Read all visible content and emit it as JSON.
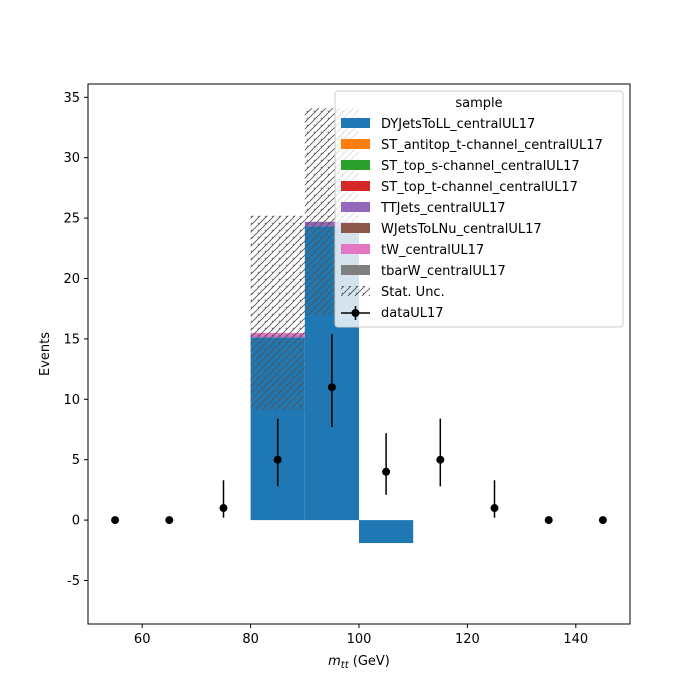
{
  "chart_data": {
    "type": "bar",
    "xlabel_main": "m",
    "xlabel_sub": "tt",
    "xlabel_unit": " (GeV)",
    "ylabel": "Events",
    "xlim": [
      50,
      150
    ],
    "ylim": [
      -8.6,
      36.1
    ],
    "x_ticks": [
      60,
      80,
      100,
      120,
      140
    ],
    "y_ticks": [
      -5,
      0,
      5,
      10,
      15,
      20,
      25,
      30,
      35
    ],
    "bin_edges": [
      50,
      60,
      70,
      80,
      90,
      100,
      110,
      120,
      130,
      140,
      150
    ],
    "legend_title": "sample",
    "legend_position": "top-right",
    "series": [
      {
        "name": "DYJetsToLL_centralUL17",
        "color": "#1f77b4",
        "values": [
          0,
          0,
          0,
          15.1,
          24.3,
          -1.9,
          0,
          0,
          0,
          0
        ]
      },
      {
        "name": "ST_antitop_t-channel_centralUL17",
        "color": "#ff7f0e",
        "values": [
          0,
          0,
          0,
          0,
          0,
          0,
          0,
          0,
          0,
          0
        ]
      },
      {
        "name": "ST_top_s-channel_centralUL17",
        "color": "#2ca02c",
        "values": [
          0,
          0,
          0,
          0,
          0,
          0,
          0,
          0,
          0,
          0
        ]
      },
      {
        "name": "ST_top_t-channel_centralUL17",
        "color": "#d62728",
        "values": [
          0,
          0,
          0,
          0,
          0,
          0,
          0,
          0,
          0,
          0
        ]
      },
      {
        "name": "TTJets_centralUL17",
        "color": "#9467bd",
        "values": [
          0,
          0,
          0,
          0.1,
          0.4,
          0,
          0,
          0,
          0,
          0
        ]
      },
      {
        "name": "WJetsToLNu_centralUL17",
        "color": "#8c564b",
        "values": [
          0,
          0,
          0,
          0,
          0,
          0,
          0,
          0,
          0,
          0
        ]
      },
      {
        "name": "tW_centralUL17",
        "color": "#e377c2",
        "values": [
          0,
          0,
          0,
          0.3,
          0,
          0,
          0,
          0,
          0,
          0
        ]
      },
      {
        "name": "tbarW_centralUL17",
        "color": "#7f7f7f",
        "values": [
          0,
          0,
          0,
          0,
          0,
          0,
          0,
          0,
          0,
          0
        ]
      }
    ],
    "stat_unc": {
      "name": "Stat. Unc.",
      "bins": [
        {
          "x0": 80,
          "x1": 90,
          "low": 9.1,
          "high": 25.2
        },
        {
          "x0": 90,
          "x1": 100,
          "low": 17.0,
          "high": 34.1
        }
      ]
    },
    "data": {
      "name": "dataUL17",
      "color": "#000000",
      "x": [
        55,
        65,
        75,
        85,
        95,
        105,
        115,
        125,
        135,
        145
      ],
      "y": [
        0,
        0,
        1,
        5,
        11,
        4,
        5,
        1,
        0,
        0
      ],
      "err_low": [
        0,
        0,
        0.8,
        2.2,
        3.3,
        1.9,
        2.2,
        0.8,
        0,
        0
      ],
      "err_high": [
        0,
        0,
        2.3,
        3.4,
        4.4,
        3.2,
        3.4,
        2.3,
        0,
        0
      ]
    }
  }
}
